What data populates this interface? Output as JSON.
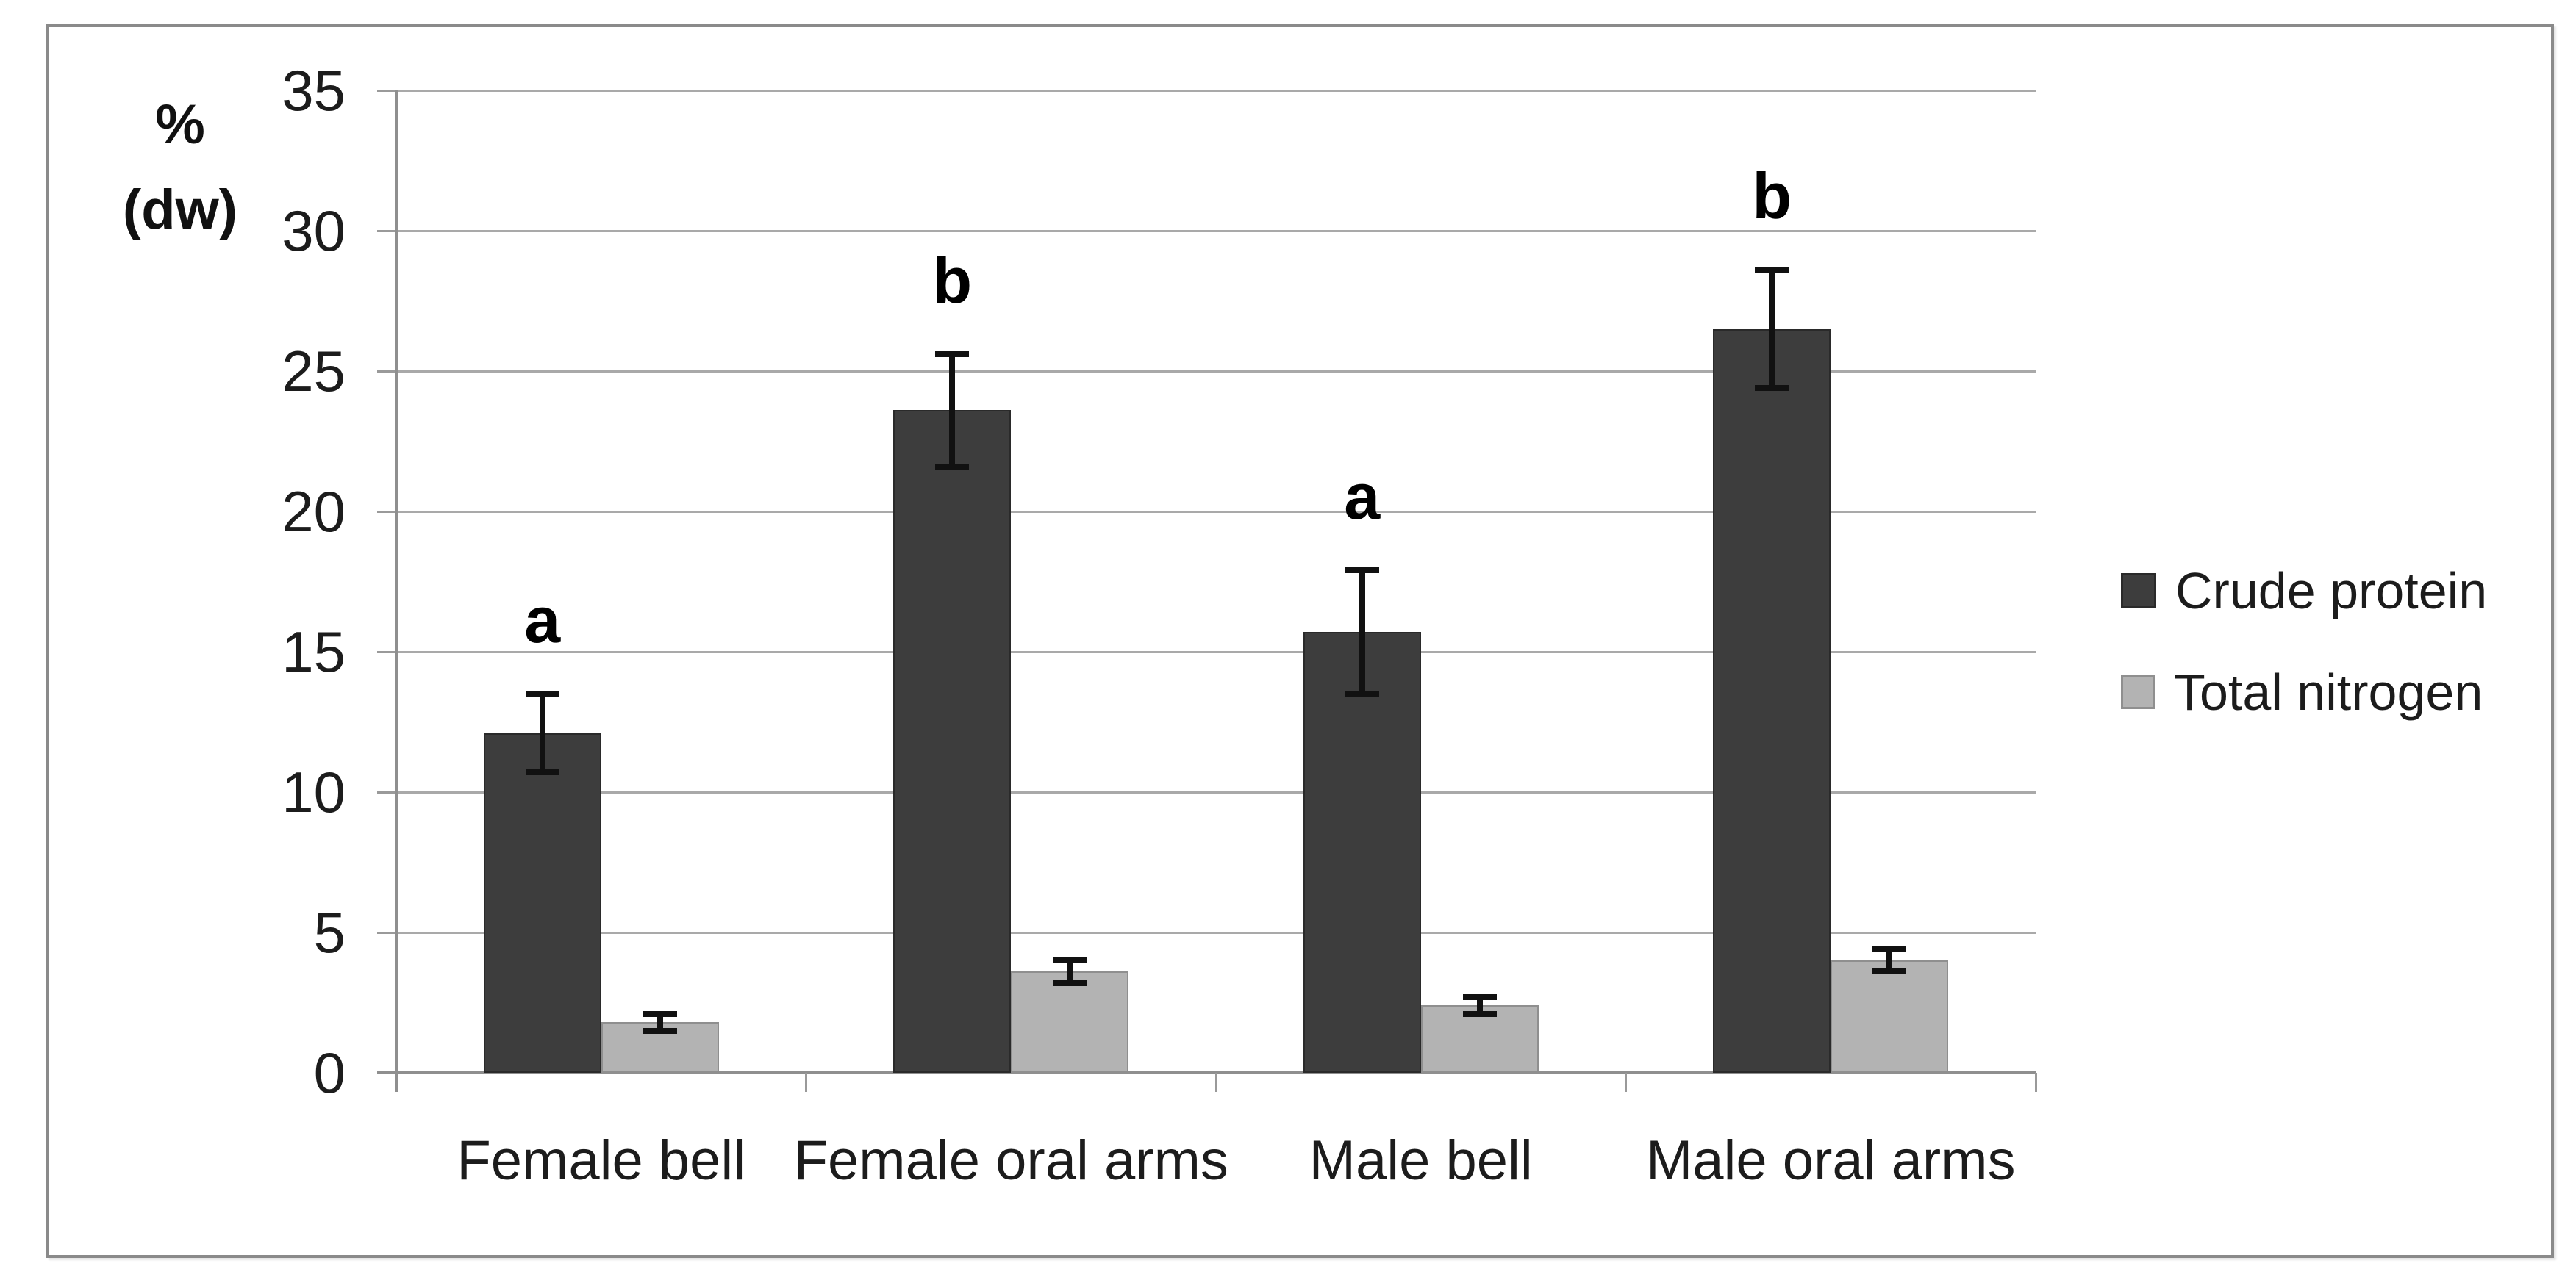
{
  "figure": {
    "background": "#ffffff",
    "border_color": "#8a8a8a"
  },
  "chart_data": {
    "type": "bar",
    "title": "",
    "ylabel": "% (dw)",
    "ylabel_lines": [
      "%",
      "(dw)"
    ],
    "categories": [
      "Female bell",
      "Female oral arms",
      "Male bell",
      "Male oral arms"
    ],
    "series": [
      {
        "name": "Crude protein",
        "color": "#3d3d3d",
        "border_color": "#2a2a2a",
        "values": [
          12.1,
          23.6,
          15.7,
          26.5
        ],
        "error_bars": [
          1.4,
          2.0,
          2.2,
          2.1
        ],
        "significance_letters": [
          "a",
          "b",
          "a",
          "b"
        ]
      },
      {
        "name": "Total nitrogen",
        "color": "#b3b3b3",
        "border_color": "#8f8f8f",
        "values": [
          1.8,
          3.6,
          2.4,
          4.0
        ],
        "error_bars": [
          0.3,
          0.4,
          0.3,
          0.4
        ],
        "significance_letters": [
          "",
          "",
          "",
          ""
        ]
      }
    ],
    "y_axis": {
      "min": 0,
      "max": 35,
      "step": 5,
      "tick_labels": [
        "0",
        "5",
        "10",
        "15",
        "20",
        "25",
        "30",
        "35"
      ]
    },
    "grid": true,
    "legend_position": "right",
    "error_bar_color": "#111111",
    "gridline_color": "#a9a9a9",
    "axis_color": "#8f8f8f"
  }
}
